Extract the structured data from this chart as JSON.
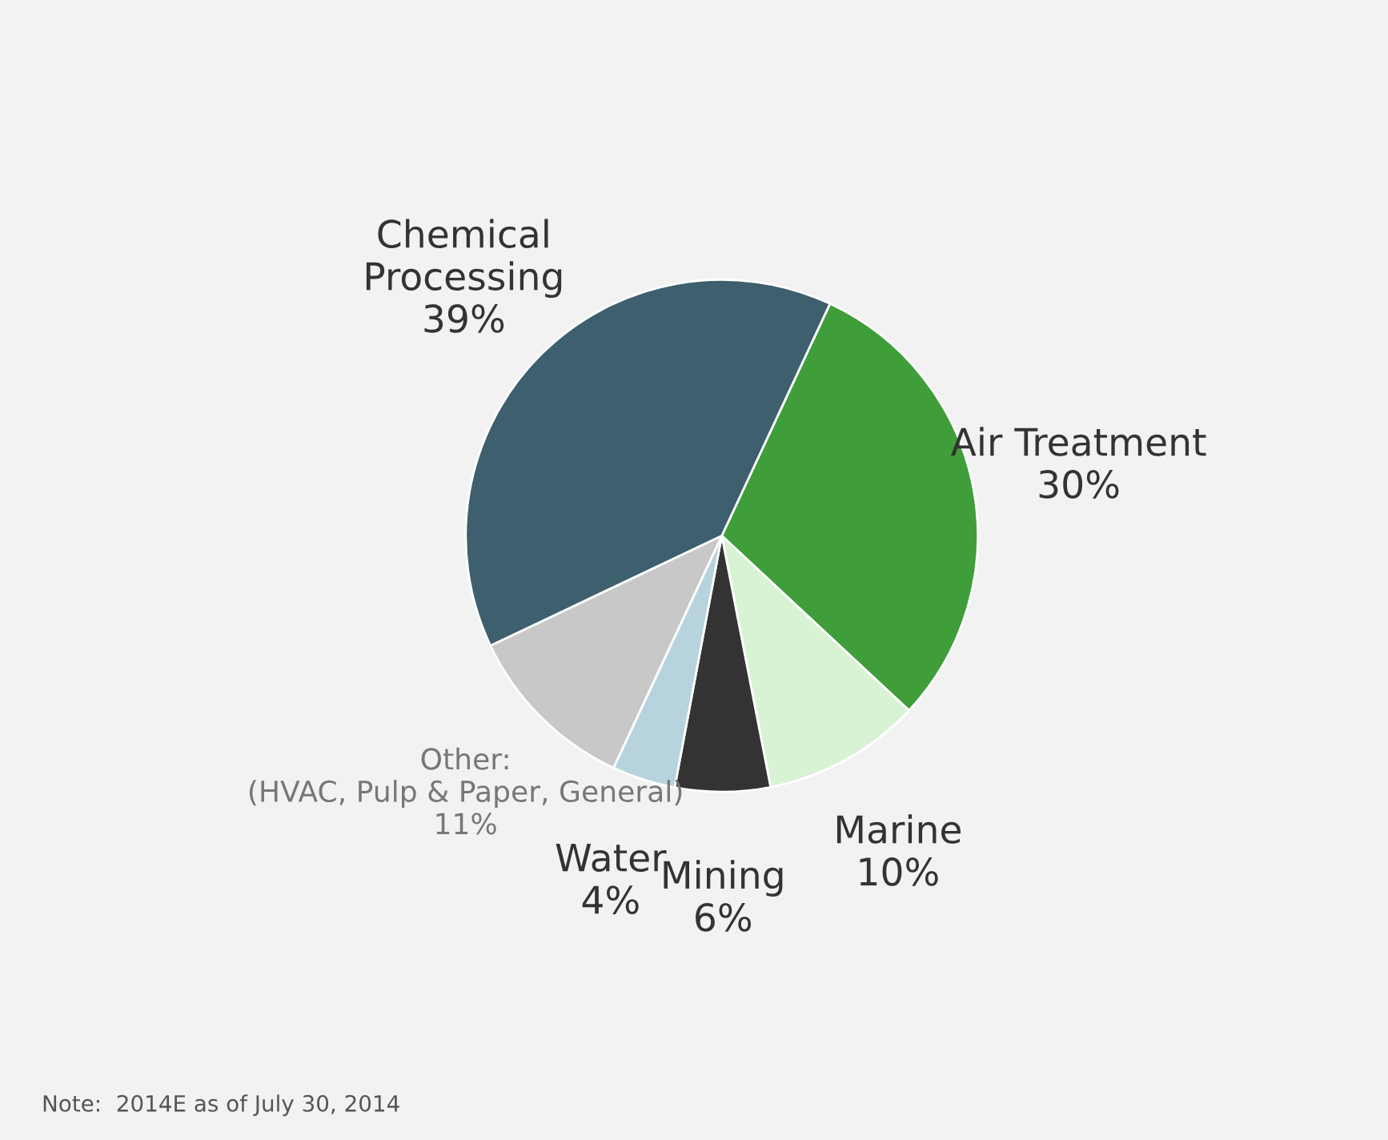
{
  "chart_data": {
    "type": "pie",
    "categories": [
      "Air Treatment",
      "Marine",
      "Mining",
      "Water",
      "Other:\n(HVAC, Pulp & Paper, General)",
      "Chemical\nProcessing"
    ],
    "values": [
      30,
      10,
      6,
      4,
      11,
      39
    ],
    "value_labels": [
      "30%",
      "10%",
      "6%",
      "4%",
      "11%",
      "39%"
    ],
    "colors": [
      "#3f9e3a",
      "#d8f3d4",
      "#333333",
      "#b7d3de",
      "#c8c8c8",
      "#3d5f6e"
    ],
    "annotations": [
      "Note:  2014E as of July 30, 2014"
    ]
  }
}
